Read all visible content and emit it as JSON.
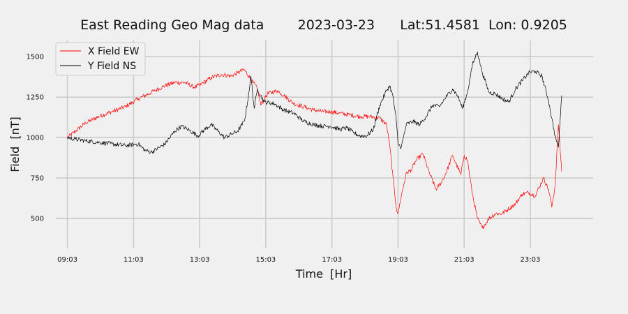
{
  "chart_data": {
    "type": "line",
    "title": "East Reading Geo Mag data        2023-03-23      Lat:51.4581  Lon: 0.9205",
    "xlabel": "Time  [Hr]",
    "ylabel": "Field  [nT]",
    "xlim": [
      8.7,
      24.95
    ],
    "ylim": [
      375,
      1600
    ],
    "x_ticks": [
      "09:03",
      "11:03",
      "13:03",
      "15:03",
      "17:03",
      "19:03",
      "21:03",
      "23:03"
    ],
    "x_tick_hours": [
      9.05,
      11.05,
      13.05,
      15.05,
      17.05,
      19.05,
      21.05,
      23.05
    ],
    "y_ticks": [
      500,
      750,
      1000,
      1250,
      1500
    ],
    "grid": true,
    "legend_position": "top-left",
    "series": [
      {
        "name": "X Field EW",
        "color": "#ff0000",
        "x": [
          9.05,
          9.3,
          9.6,
          10.0,
          10.4,
          10.8,
          11.2,
          11.6,
          12.0,
          12.3,
          12.6,
          12.9,
          13.1,
          13.4,
          13.7,
          14.0,
          14.2,
          14.4,
          14.6,
          14.8,
          14.9,
          15.1,
          15.4,
          15.6,
          15.9,
          16.2,
          16.5,
          16.8,
          17.0,
          17.3,
          17.6,
          17.9,
          18.2,
          18.5,
          18.7,
          18.8,
          18.9,
          19.0,
          19.05,
          19.15,
          19.3,
          19.45,
          19.6,
          19.8,
          20.0,
          20.2,
          20.35,
          20.5,
          20.7,
          20.8,
          20.95,
          21.05,
          21.15,
          21.3,
          21.45,
          21.6,
          21.8,
          22.0,
          22.2,
          22.4,
          22.6,
          22.8,
          23.0,
          23.2,
          23.45,
          23.6,
          23.7,
          23.8,
          23.9,
          24.0
        ],
        "y": [
          1000,
          1040,
          1090,
          1130,
          1160,
          1190,
          1240,
          1280,
          1320,
          1340,
          1340,
          1310,
          1330,
          1370,
          1390,
          1380,
          1400,
          1420,
          1360,
          1300,
          1200,
          1270,
          1290,
          1260,
          1210,
          1190,
          1170,
          1160,
          1160,
          1150,
          1140,
          1130,
          1130,
          1120,
          1080,
          950,
          750,
          560,
          530,
          640,
          780,
          800,
          860,
          900,
          780,
          680,
          720,
          780,
          890,
          840,
          770,
          890,
          860,
          650,
          500,
          440,
          500,
          530,
          530,
          560,
          590,
          650,
          660,
          640,
          750,
          680,
          570,
          700,
          1080,
          790
        ]
      },
      {
        "name": "Y Field NS",
        "color": "#000000",
        "x": [
          9.05,
          9.3,
          9.6,
          10.0,
          10.4,
          10.8,
          11.2,
          11.4,
          11.6,
          12.0,
          12.3,
          12.5,
          12.7,
          13.0,
          13.2,
          13.4,
          13.6,
          13.8,
          14.0,
          14.2,
          14.4,
          14.5,
          14.6,
          14.7,
          14.8,
          15.0,
          15.3,
          15.6,
          15.9,
          16.2,
          16.5,
          16.8,
          17.0,
          17.3,
          17.5,
          17.7,
          17.9,
          18.1,
          18.3,
          18.5,
          18.7,
          18.8,
          18.9,
          19.0,
          19.05,
          19.15,
          19.3,
          19.5,
          19.7,
          19.9,
          20.1,
          20.3,
          20.5,
          20.7,
          20.85,
          21.0,
          21.15,
          21.3,
          21.45,
          21.6,
          21.8,
          22.0,
          22.2,
          22.4,
          22.6,
          22.8,
          23.0,
          23.2,
          23.4,
          23.6,
          23.7,
          23.8,
          23.9,
          24.0
        ],
        "y": [
          1000,
          990,
          980,
          970,
          960,
          950,
          960,
          920,
          910,
          960,
          1040,
          1070,
          1050,
          1010,
          1050,
          1080,
          1040,
          1000,
          1020,
          1040,
          1100,
          1220,
          1380,
          1180,
          1300,
          1220,
          1210,
          1170,
          1150,
          1100,
          1080,
          1070,
          1070,
          1050,
          1060,
          1030,
          1010,
          1010,
          1050,
          1200,
          1290,
          1320,
          1250,
          1100,
          960,
          940,
          1080,
          1100,
          1080,
          1130,
          1200,
          1190,
          1250,
          1300,
          1260,
          1180,
          1280,
          1450,
          1530,
          1400,
          1280,
          1270,
          1240,
          1220,
          1300,
          1350,
          1400,
          1410,
          1380,
          1230,
          1120,
          1010,
          940,
          1260
        ]
      }
    ]
  }
}
